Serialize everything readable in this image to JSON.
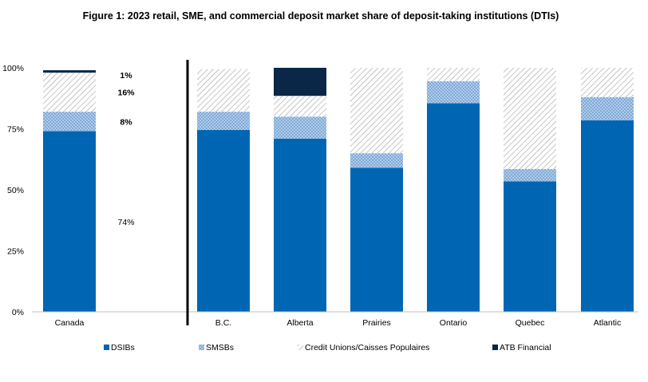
{
  "chart_data": {
    "type": "bar",
    "stacked": true,
    "title": "Figure 1: 2023 retail, SME, and commercial deposit market share of deposit-taking  institutions  (DTIs)",
    "categories": [
      "Canada",
      "B.C.",
      "Alberta",
      "Prairies",
      "Ontario",
      "Quebec",
      "Atlantic"
    ],
    "ylim": [
      0,
      100
    ],
    "yticks": [
      "0%",
      "25%",
      "50%",
      "75%",
      "100%"
    ],
    "legend_position": "bottom",
    "grid": false,
    "series": [
      {
        "name": "DSIBs",
        "color": "#0066B3",
        "pattern": "solid",
        "values": [
          74,
          74.5,
          71,
          59,
          85.5,
          53.5,
          78.5
        ]
      },
      {
        "name": "SMSBs",
        "color": "#7FAAD9",
        "pattern": "dots",
        "values": [
          8,
          7.5,
          9,
          6,
          9,
          5,
          9.5
        ]
      },
      {
        "name": "Credit Unions/Caisses Populaires",
        "color": "#9E9E9E",
        "pattern": "hatch",
        "values": [
          16,
          17.5,
          8.5,
          35,
          5.5,
          41.5,
          12
        ]
      },
      {
        "name": "ATB Financial",
        "color": "#0B2747",
        "pattern": "solid",
        "values": [
          1,
          0,
          11.5,
          0,
          0,
          0,
          0
        ]
      }
    ],
    "canada_labels": [
      {
        "series": "ATB Financial",
        "text": "1%",
        "bold": true
      },
      {
        "series": "Credit Unions/Caisses Populaires",
        "text": "16%",
        "bold": true
      },
      {
        "series": "SMSBs",
        "text": "8%",
        "bold": true
      },
      {
        "series": "DSIBs",
        "text": "74%",
        "bold": false
      }
    ]
  }
}
